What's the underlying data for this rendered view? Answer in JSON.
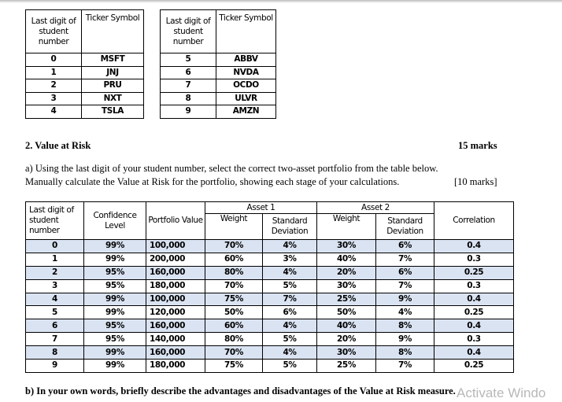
{
  "ticker_tables": {
    "headers": [
      "Last digit of student number",
      "Ticker Symbol"
    ],
    "left": [
      [
        "0",
        "MSFT"
      ],
      [
        "1",
        "JNJ"
      ],
      [
        "2",
        "PRU"
      ],
      [
        "3",
        "NXT"
      ],
      [
        "4",
        "TSLA"
      ]
    ],
    "right": [
      [
        "5",
        "ABBV"
      ],
      [
        "6",
        "NVDA"
      ],
      [
        "7",
        "OCDO"
      ],
      [
        "8",
        "ULVR"
      ],
      [
        "9",
        "AMZN"
      ]
    ]
  },
  "section": {
    "title": "2. Value at Risk",
    "marks": "15 marks"
  },
  "question_a": {
    "line1": "a) Using the last digit of your student number, select the correct two-asset portfolio from the table below.",
    "line2": "Manually calculate the Value at Risk for the portfolio, showing each stage of your calculations.",
    "marks": "[10 marks]"
  },
  "portfolio_table": {
    "headers": {
      "digit": "Last digit of student number",
      "confidence": "Confidence Level",
      "value": "Portfolio Value",
      "asset1": "Asset 1",
      "asset2": "Asset 2",
      "weight": "Weight",
      "sd": "Standard Deviation",
      "correlation": "Correlation"
    },
    "rows": [
      [
        "0",
        "99%",
        "100,000",
        "70%",
        "4%",
        "30%",
        "6%",
        "0.4"
      ],
      [
        "1",
        "99%",
        "200,000",
        "60%",
        "3%",
        "40%",
        "7%",
        "0.3"
      ],
      [
        "2",
        "95%",
        "160,000",
        "80%",
        "4%",
        "20%",
        "6%",
        "0.25"
      ],
      [
        "3",
        "95%",
        "180,000",
        "70%",
        "5%",
        "30%",
        "7%",
        "0.3"
      ],
      [
        "4",
        "99%",
        "100,000",
        "75%",
        "7%",
        "25%",
        "9%",
        "0.4"
      ],
      [
        "5",
        "99%",
        "120,000",
        "50%",
        "6%",
        "50%",
        "4%",
        "0.25"
      ],
      [
        "6",
        "95%",
        "160,000",
        "60%",
        "4%",
        "40%",
        "8%",
        "0.4"
      ],
      [
        "7",
        "95%",
        "140,000",
        "80%",
        "5%",
        "20%",
        "9%",
        "0.3"
      ],
      [
        "8",
        "99%",
        "160,000",
        "70%",
        "4%",
        "30%",
        "8%",
        "0.4"
      ],
      [
        "9",
        "99%",
        "180,000",
        "75%",
        "5%",
        "25%",
        "7%",
        "0.25"
      ]
    ],
    "shade_color": "#dae3f2"
  },
  "question_b": "b) In your own words, briefly describe the advantages and disadvantages of the Value at Risk measure.",
  "watermark": "Activate Windo"
}
